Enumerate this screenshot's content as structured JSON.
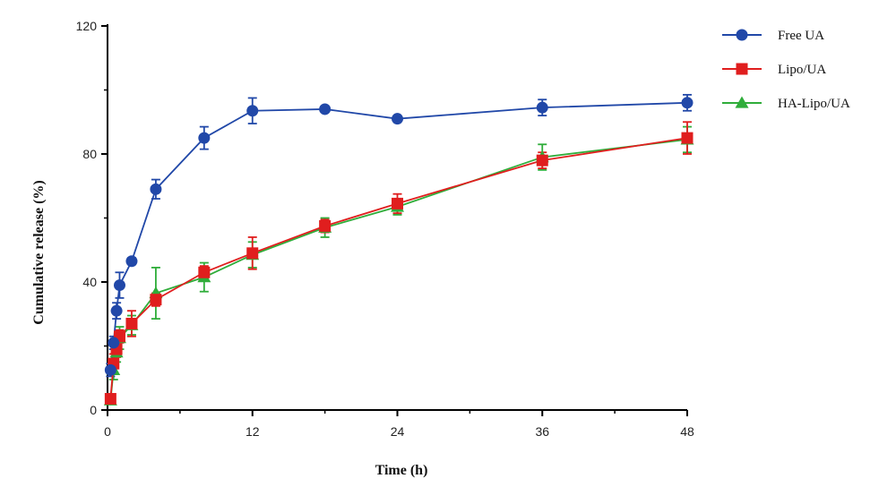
{
  "chart_data": {
    "type": "line",
    "title": "",
    "xlabel": "Time (h)",
    "ylabel": "Cumulative release (%)",
    "xlim": [
      0,
      48
    ],
    "ylim": [
      0,
      120
    ],
    "xticks": [
      0,
      12,
      24,
      36,
      48
    ],
    "yticks": [
      0,
      40,
      80,
      120
    ],
    "grid": false,
    "legend_position": "top-right",
    "series": [
      {
        "name": "Free UA",
        "color": "#2148a8",
        "marker": "circle",
        "x": [
          0.25,
          0.5,
          0.75,
          1,
          2,
          4,
          8,
          12,
          18,
          24,
          36,
          48
        ],
        "y": [
          12.5,
          21,
          31,
          39,
          46.5,
          69,
          85,
          93.5,
          94,
          91,
          94.5,
          96
        ],
        "error": [
          2,
          2,
          2.5,
          4,
          1,
          3,
          3.5,
          4,
          0.5,
          0.5,
          2.5,
          2.5
        ]
      },
      {
        "name": "Lipo/UA",
        "color": "#e01e1e",
        "marker": "square",
        "x": [
          0.25,
          0.5,
          0.75,
          1,
          2,
          4,
          8,
          12,
          18,
          24,
          36,
          48
        ],
        "y": [
          3.5,
          14.5,
          19,
          23,
          27,
          34.5,
          43,
          49,
          57.5,
          64.5,
          78,
          85
        ],
        "error": [
          1,
          3,
          2.5,
          2,
          4,
          2,
          2,
          5,
          2,
          3,
          2.5,
          5
        ]
      },
      {
        "name": "HA-Lipo/UA",
        "color": "#2fad3a",
        "marker": "triangle",
        "x": [
          0.25,
          0.5,
          0.75,
          1,
          2,
          4,
          8,
          12,
          18,
          24,
          36,
          48
        ],
        "y": [
          3,
          12.5,
          18,
          22.5,
          26.5,
          36.5,
          41.5,
          48.5,
          57,
          63.5,
          79,
          84.5
        ],
        "error": [
          1,
          3,
          3,
          3.5,
          3,
          8,
          4.5,
          4,
          3,
          2.5,
          4,
          4
        ]
      }
    ]
  }
}
